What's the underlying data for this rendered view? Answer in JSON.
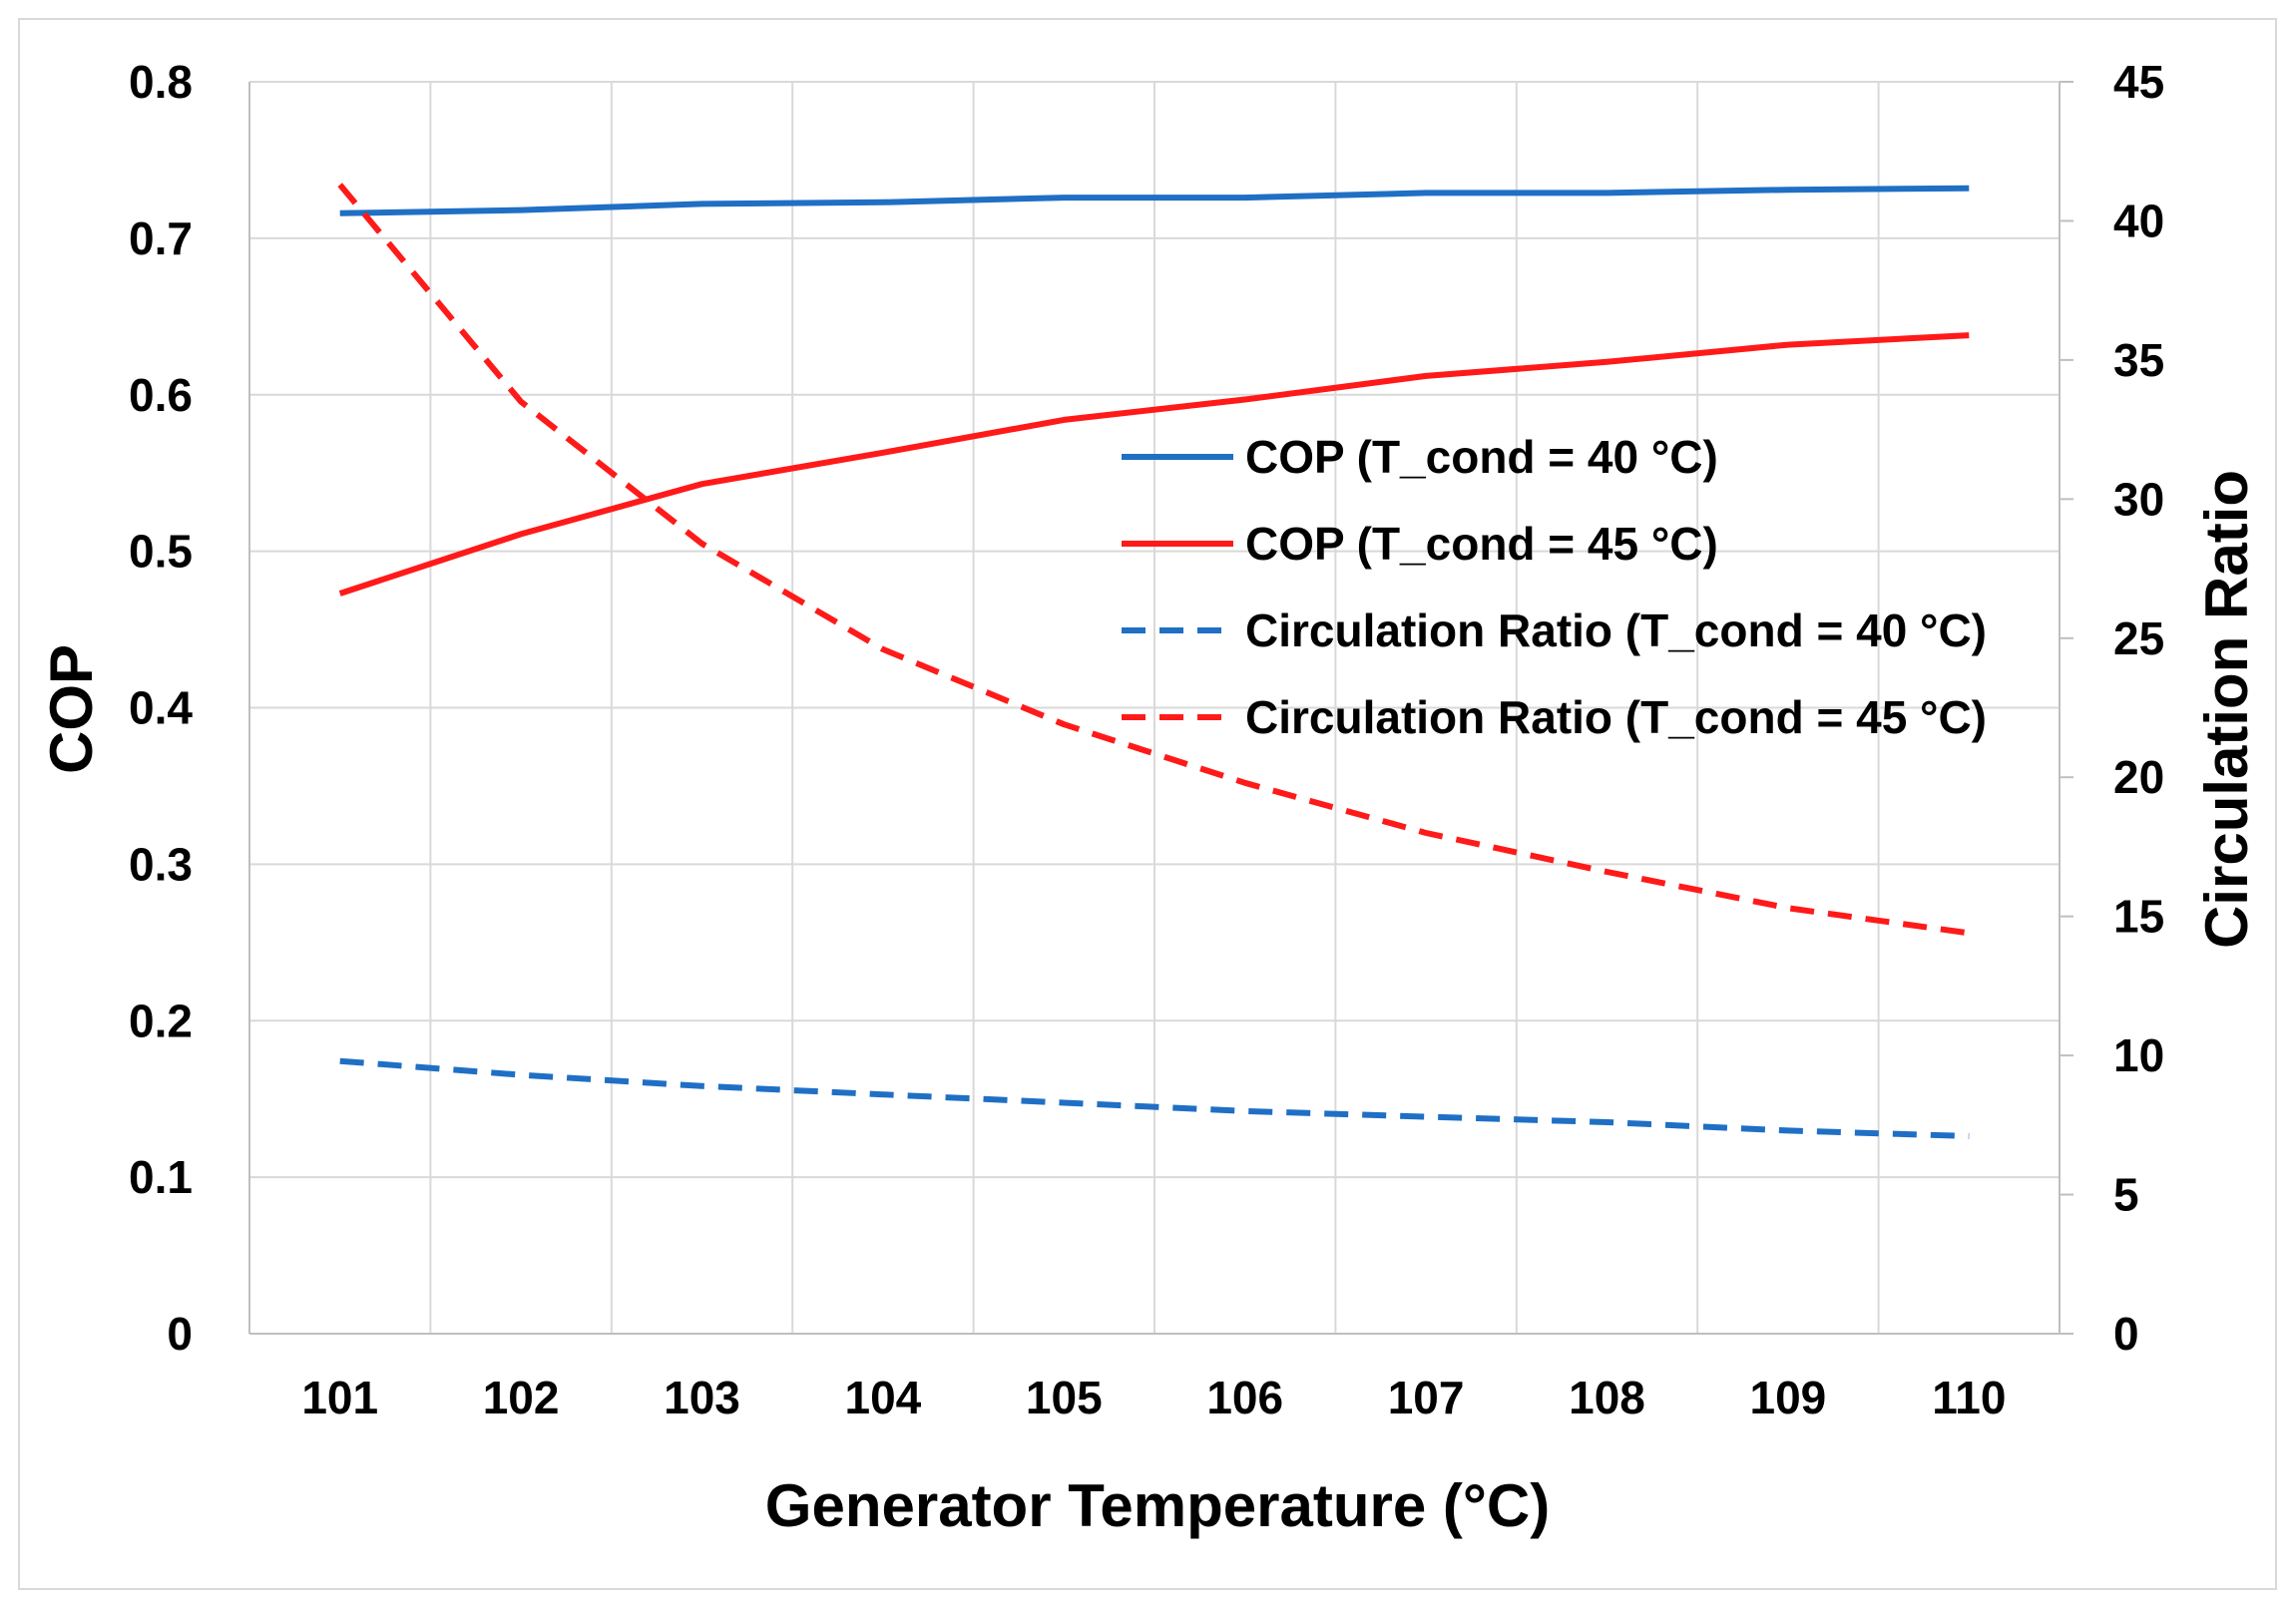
{
  "chart_data": {
    "type": "line",
    "title": "",
    "xlabel": "Generator Temperature (°C)",
    "ylabel": "COP",
    "y2label": "Circulation Ratio",
    "x": [
      101,
      102,
      103,
      104,
      105,
      106,
      107,
      108,
      109,
      110
    ],
    "ylim": [
      0,
      0.8
    ],
    "y2lim": [
      0,
      45
    ],
    "yticks": [
      "0",
      "0.1",
      "0.2",
      "0.3",
      "0.4",
      "0.5",
      "0.6",
      "0.7",
      "0.8"
    ],
    "y2ticks": [
      "0",
      "5",
      "10",
      "15",
      "20",
      "25",
      "30",
      "35",
      "40",
      "45"
    ],
    "grid": true,
    "legend_position": "center-right",
    "series": [
      {
        "name": "COP (T_cond = 40 °C)",
        "axis": "left",
        "color": "#1f6fc5",
        "dash": "solid",
        "values": [
          0.716,
          0.718,
          0.722,
          0.723,
          0.726,
          0.726,
          0.729,
          0.729,
          0.731,
          0.732
        ]
      },
      {
        "name": "COP (T_cond = 45 °C)",
        "axis": "left",
        "color": "#ff1a1a",
        "dash": "solid",
        "values": [
          0.473,
          0.511,
          0.543,
          0.563,
          0.584,
          0.597,
          0.612,
          0.621,
          0.632,
          0.638
        ]
      },
      {
        "name": "Circulation Ratio (T_cond = 40 °C)",
        "axis": "right",
        "color": "#1f6fc5",
        "dash": "dashed",
        "values": [
          9.8,
          9.3,
          8.9,
          8.6,
          8.3,
          8.0,
          7.8,
          7.6,
          7.3,
          7.1
        ]
      },
      {
        "name": "Circulation Ratio (T_cond = 45 °C)",
        "axis": "right",
        "color": "#ff1a1a",
        "dash": "dashed",
        "values": [
          41.3,
          33.5,
          28.4,
          24.6,
          21.9,
          19.8,
          18.0,
          16.6,
          15.3,
          14.4
        ]
      }
    ]
  }
}
